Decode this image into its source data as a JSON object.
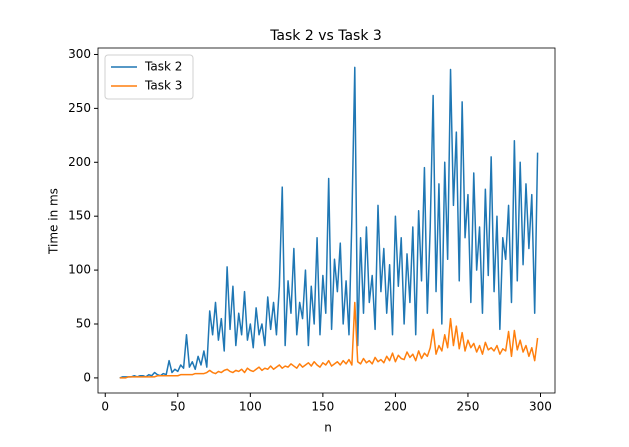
{
  "chart_data": {
    "type": "line",
    "title": "Task 2 vs Task 3",
    "xlabel": "n",
    "ylabel": "Time in ms",
    "x": [
      10,
      12,
      14,
      16,
      18,
      20,
      22,
      24,
      26,
      28,
      30,
      32,
      34,
      36,
      38,
      40,
      42,
      44,
      46,
      48,
      50,
      52,
      54,
      56,
      58,
      60,
      62,
      64,
      66,
      68,
      70,
      72,
      74,
      76,
      78,
      80,
      82,
      84,
      86,
      88,
      90,
      92,
      94,
      96,
      98,
      100,
      102,
      104,
      106,
      108,
      110,
      112,
      114,
      116,
      118,
      120,
      122,
      124,
      126,
      128,
      130,
      132,
      134,
      136,
      138,
      140,
      142,
      144,
      146,
      148,
      150,
      152,
      154,
      156,
      158,
      160,
      162,
      164,
      166,
      168,
      170,
      172,
      174,
      176,
      178,
      180,
      182,
      184,
      186,
      188,
      190,
      192,
      194,
      196,
      198,
      200,
      202,
      204,
      206,
      208,
      210,
      212,
      214,
      216,
      218,
      220,
      222,
      224,
      226,
      228,
      230,
      232,
      234,
      236,
      238,
      240,
      242,
      244,
      246,
      248,
      250,
      252,
      254,
      256,
      258,
      260,
      262,
      264,
      266,
      268,
      270,
      272,
      274,
      276,
      278,
      280,
      282,
      284,
      286,
      288,
      290,
      292,
      294,
      296,
      298
    ],
    "series": [
      {
        "name": "Task 2",
        "color": "#1f77b4",
        "values": [
          0,
          1,
          1,
          1,
          1,
          2,
          1,
          2,
          2,
          1,
          3,
          2,
          5,
          3,
          2,
          4,
          3,
          16,
          5,
          8,
          6,
          12,
          9,
          40,
          10,
          15,
          8,
          20,
          12,
          25,
          10,
          62,
          40,
          70,
          35,
          55,
          25,
          103,
          45,
          85,
          30,
          60,
          40,
          80,
          35,
          50,
          28,
          65,
          40,
          50,
          30,
          75,
          45,
          70,
          40,
          85,
          177,
          30,
          90,
          60,
          120,
          40,
          70,
          55,
          100,
          30,
          85,
          50,
          130,
          40,
          95,
          60,
          185,
          45,
          110,
          80,
          125,
          50,
          90,
          40,
          148,
          288,
          30,
          130,
          60,
          140,
          70,
          95,
          45,
          160,
          80,
          120,
          60,
          105,
          40,
          150,
          85,
          130,
          50,
          115,
          70,
          140,
          40,
          155,
          90,
          195,
          60,
          140,
          262,
          80,
          180,
          50,
          200,
          110,
          286,
          160,
          228,
          90,
          256,
          130,
          170,
          70,
          190,
          100,
          140,
          60,
          175,
          95,
          205,
          80,
          150,
          45,
          130,
          110,
          160,
          70,
          220,
          90,
          200,
          105,
          180,
          120,
          170,
          60,
          209
        ]
      },
      {
        "name": "Task 3",
        "color": "#ff7f0e",
        "values": [
          0,
          0,
          0,
          1,
          1,
          1,
          1,
          1,
          1,
          1,
          1,
          1,
          1,
          2,
          2,
          2,
          2,
          2,
          2,
          2,
          2,
          3,
          3,
          3,
          3,
          3,
          4,
          4,
          4,
          4,
          5,
          7,
          5,
          4,
          6,
          5,
          7,
          8,
          6,
          5,
          7,
          6,
          8,
          5,
          9,
          7,
          6,
          8,
          10,
          7,
          9,
          8,
          11,
          8,
          10,
          12,
          9,
          11,
          10,
          13,
          11,
          9,
          13,
          10,
          12,
          14,
          11,
          15,
          12,
          10,
          14,
          12,
          16,
          11,
          13,
          15,
          12,
          16,
          13,
          17,
          12,
          70,
          15,
          13,
          18,
          14,
          16,
          13,
          19,
          15,
          17,
          14,
          20,
          16,
          23,
          15,
          21,
          18,
          17,
          24,
          19,
          22,
          16,
          25,
          18,
          23,
          20,
          28,
          45,
          22,
          30,
          25,
          40,
          28,
          55,
          30,
          48,
          27,
          42,
          25,
          35,
          28,
          32,
          24,
          30,
          22,
          33,
          26,
          28,
          25,
          30,
          22,
          27,
          25,
          43,
          20,
          44,
          26,
          35,
          24,
          30,
          20,
          28,
          16,
          37
        ]
      }
    ],
    "xlim": [
      -5,
      310
    ],
    "xticks": [
      0,
      50,
      100,
      150,
      200,
      250,
      300
    ],
    "ylim": [
      -14,
      306
    ],
    "yticks": [
      0,
      50,
      100,
      150,
      200,
      250,
      300
    ],
    "legend": "upper left"
  }
}
